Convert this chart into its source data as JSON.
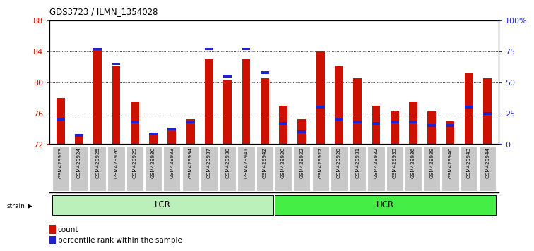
{
  "title": "GDS3723 / ILMN_1354028",
  "samples": [
    "GSM429923",
    "GSM429924",
    "GSM429925",
    "GSM429926",
    "GSM429929",
    "GSM429930",
    "GSM429933",
    "GSM429934",
    "GSM429937",
    "GSM429938",
    "GSM429941",
    "GSM429942",
    "GSM429920",
    "GSM429922",
    "GSM429927",
    "GSM429928",
    "GSM429931",
    "GSM429932",
    "GSM429935",
    "GSM429936",
    "GSM429939",
    "GSM429940",
    "GSM429943",
    "GSM429944"
  ],
  "count": [
    78.0,
    73.2,
    84.5,
    82.2,
    77.5,
    73.2,
    74.0,
    75.2,
    83.0,
    80.3,
    83.0,
    80.5,
    77.0,
    75.2,
    84.0,
    82.2,
    80.5,
    77.0,
    76.3,
    77.5,
    76.2,
    75.0,
    81.2,
    80.5
  ],
  "percentile": [
    20,
    7,
    77,
    65,
    18,
    8,
    12,
    18,
    77,
    55,
    77,
    58,
    17,
    10,
    30,
    20,
    18,
    17,
    18,
    18,
    15,
    15,
    30,
    25
  ],
  "groups": [
    {
      "label": "LCR",
      "start": 0,
      "end": 12,
      "color": "#bbf0bb"
    },
    {
      "label": "HCR",
      "start": 12,
      "end": 24,
      "color": "#44ee44"
    }
  ],
  "ylim_left": [
    72,
    88
  ],
  "ylim_right": [
    0,
    100
  ],
  "yticks_left": [
    72,
    76,
    80,
    84,
    88
  ],
  "yticks_right": [
    0,
    25,
    50,
    75,
    100
  ],
  "ytick_labels_right": [
    "0",
    "25",
    "50",
    "75",
    "100%"
  ],
  "bar_color": "#cc1100",
  "marker_color": "#2222cc",
  "grid_color": "#000000",
  "bg_color": "#ffffff",
  "tick_label_bg": "#c8c8c8",
  "ylabel_left_color": "#cc1100",
  "ylabel_right_color": "#2222cc",
  "bar_width": 0.45
}
